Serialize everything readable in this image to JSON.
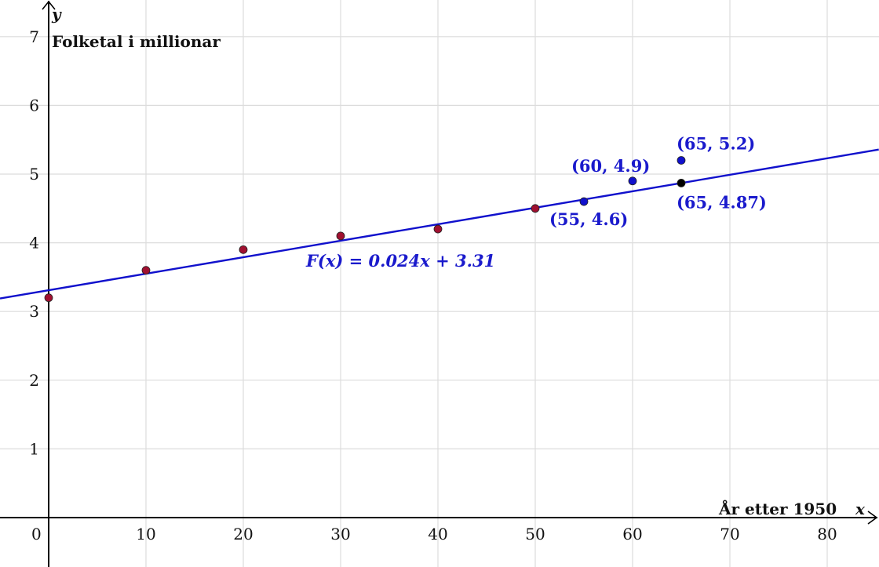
{
  "chart_data": {
    "type": "scatter",
    "title": "",
    "xlabel": "År etter 1950",
    "xvar": "x",
    "ylabel": "Folketal i millionar",
    "yvar": "y",
    "xlim": [
      -5,
      85.3
    ],
    "ylim": [
      -0.72,
      7.53
    ],
    "grid": true,
    "x_ticks": [
      0,
      10,
      20,
      30,
      40,
      50,
      60,
      70,
      80
    ],
    "y_ticks": [
      1,
      2,
      3,
      4,
      5,
      6,
      7
    ],
    "series": [
      {
        "name": "data",
        "color": "#a01030",
        "points": [
          [
            0,
            3.2
          ],
          [
            10,
            3.6
          ],
          [
            20,
            3.9
          ],
          [
            30,
            4.1
          ],
          [
            40,
            4.2
          ],
          [
            50,
            4.5
          ]
        ]
      },
      {
        "name": "labelled",
        "color": "#1010cc",
        "points": [
          [
            55,
            4.6
          ],
          [
            60,
            4.9
          ],
          [
            65,
            5.2
          ]
        ],
        "labels": [
          "(55, 4.6)",
          "(60, 4.9)",
          "(65, 5.2)"
        ]
      },
      {
        "name": "model-point",
        "color": "#000000",
        "points": [
          [
            65,
            4.87
          ]
        ],
        "labels": [
          "(65, 4.87)"
        ]
      }
    ],
    "regression": {
      "slope": 0.024,
      "intercept": 3.31,
      "color": "#1010cc",
      "label": "F(x) = 0.024x + 3.31"
    }
  }
}
